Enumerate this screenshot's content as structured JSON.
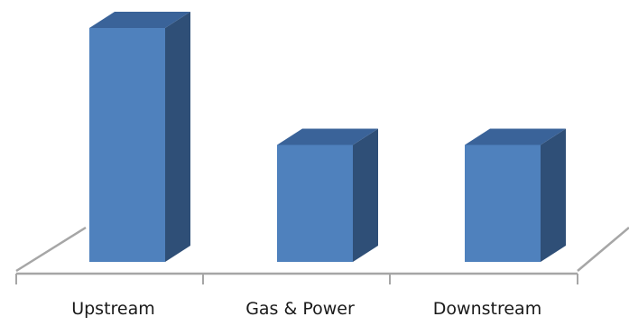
{
  "chart_data": {
    "type": "bar",
    "style": "3d-column",
    "categories": [
      "Upstream",
      "Gas & Power",
      "Downstream"
    ],
    "values": [
      100,
      50,
      50
    ],
    "ylim": [
      0,
      100
    ],
    "grid": false,
    "legend": "none",
    "colors": {
      "front": "#4f81bd",
      "side": "#2f4f77",
      "top": "#3a6399",
      "floor": "#a6a6a6"
    }
  }
}
